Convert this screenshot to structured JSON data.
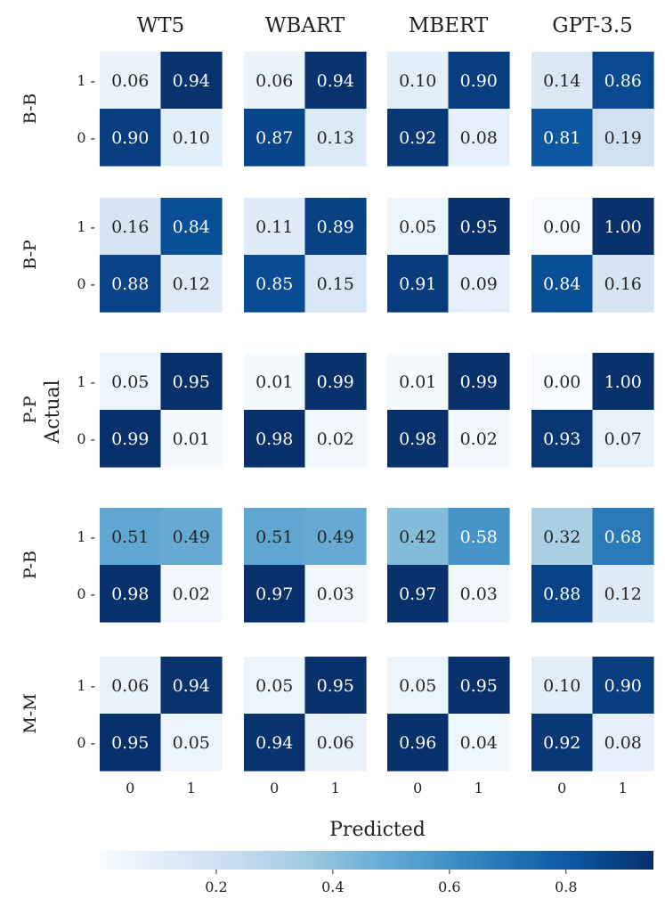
{
  "chart_data": {
    "type": "heatmap",
    "colormap": "Blues",
    "color_range": [
      0.0,
      0.95
    ],
    "columns": [
      "WT5",
      "WBART",
      "MBERT",
      "GPT-3.5"
    ],
    "rows": [
      "B-B",
      "B-P",
      "P-P",
      "P-B",
      "M-M"
    ],
    "xlabel": "Predicted",
    "ylabel": "Actual",
    "x_ticks": [
      "0",
      "1"
    ],
    "y_ticks": [
      "1 -",
      "0 -"
    ],
    "colorbar_ticks": [
      0.2,
      0.4,
      0.6,
      0.8
    ],
    "colorbar_tick_labels": [
      "0.2",
      "0.4",
      "0.6",
      "0.8"
    ],
    "matrices": [
      [
        [
          [
            "0.06",
            "0.94"
          ],
          [
            "0.90",
            "0.10"
          ]
        ],
        [
          [
            "0.06",
            "0.94"
          ],
          [
            "0.87",
            "0.13"
          ]
        ],
        [
          [
            "0.10",
            "0.90"
          ],
          [
            "0.92",
            "0.08"
          ]
        ],
        [
          [
            "0.14",
            "0.86"
          ],
          [
            "0.81",
            "0.19"
          ]
        ]
      ],
      [
        [
          [
            "0.16",
            "0.84"
          ],
          [
            "0.88",
            "0.12"
          ]
        ],
        [
          [
            "0.11",
            "0.89"
          ],
          [
            "0.85",
            "0.15"
          ]
        ],
        [
          [
            "0.05",
            "0.95"
          ],
          [
            "0.91",
            "0.09"
          ]
        ],
        [
          [
            "0.00",
            "1.00"
          ],
          [
            "0.84",
            "0.16"
          ]
        ]
      ],
      [
        [
          [
            "0.05",
            "0.95"
          ],
          [
            "0.99",
            "0.01"
          ]
        ],
        [
          [
            "0.01",
            "0.99"
          ],
          [
            "0.98",
            "0.02"
          ]
        ],
        [
          [
            "0.01",
            "0.99"
          ],
          [
            "0.98",
            "0.02"
          ]
        ],
        [
          [
            "0.00",
            "1.00"
          ],
          [
            "0.93",
            "0.07"
          ]
        ]
      ],
      [
        [
          [
            "0.51",
            "0.49"
          ],
          [
            "0.98",
            "0.02"
          ]
        ],
        [
          [
            "0.51",
            "0.49"
          ],
          [
            "0.97",
            "0.03"
          ]
        ],
        [
          [
            "0.42",
            "0.58"
          ],
          [
            "0.97",
            "0.03"
          ]
        ],
        [
          [
            "0.32",
            "0.68"
          ],
          [
            "0.88",
            "0.12"
          ]
        ]
      ],
      [
        [
          [
            "0.06",
            "0.94"
          ],
          [
            "0.95",
            "0.05"
          ]
        ],
        [
          [
            "0.05",
            "0.95"
          ],
          [
            "0.94",
            "0.06"
          ]
        ],
        [
          [
            "0.05",
            "0.95"
          ],
          [
            "0.96",
            "0.04"
          ]
        ],
        [
          [
            "0.10",
            "0.90"
          ],
          [
            "0.92",
            "0.08"
          ]
        ]
      ]
    ]
  }
}
